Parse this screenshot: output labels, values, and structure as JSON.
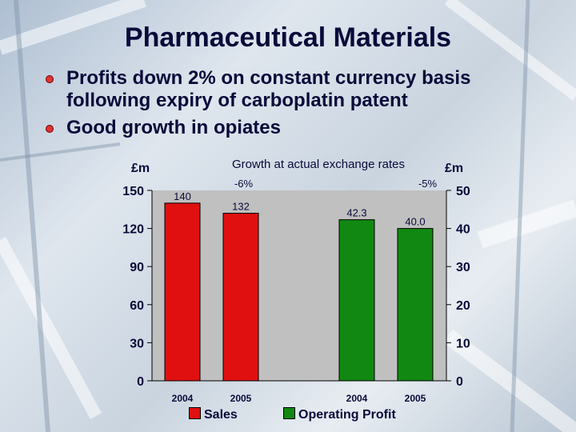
{
  "slide": {
    "title": "Pharmaceutical Materials",
    "bullets": [
      "Profits down 2% on constant currency basis following expiry of carboplatin patent",
      "Good growth in opiates"
    ]
  },
  "chart_data": {
    "type": "bar",
    "subtitle": "Growth at actual exchange rates",
    "left_axis": {
      "label": "£m",
      "ticks": [
        "0",
        "30",
        "60",
        "90",
        "120",
        "150"
      ],
      "range": [
        0,
        150
      ]
    },
    "right_axis": {
      "label": "£m",
      "ticks": [
        "0",
        "10",
        "20",
        "30",
        "40",
        "50"
      ],
      "range": [
        0,
        50
      ]
    },
    "series": [
      {
        "name": "Sales",
        "color": "#e01010",
        "axis": "left",
        "categories": [
          "2004",
          "2005"
        ],
        "values": [
          140,
          132
        ],
        "value_labels": [
          "140",
          "132"
        ],
        "growth_label": "-6%"
      },
      {
        "name": "Operating Profit",
        "color": "#118811",
        "axis": "right",
        "categories": [
          "2004",
          "2005"
        ],
        "values": [
          42.3,
          40.0
        ],
        "value_labels": [
          "42.3",
          "40.0"
        ],
        "growth_label": "-5%"
      }
    ],
    "plot_background": "#c0c0c0",
    "grid": false,
    "legend_position": "bottom"
  }
}
